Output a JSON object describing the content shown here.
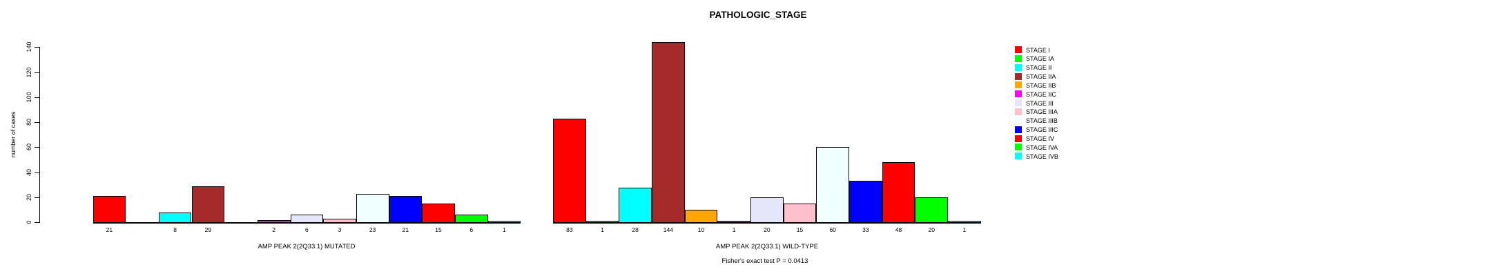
{
  "title": "PATHOLOGIC_STAGE",
  "chart_data": {
    "type": "bar",
    "title": "PATHOLOGIC_STAGE",
    "xlabel": "",
    "ylabel": "number of cases",
    "ylim": [
      0,
      140
    ],
    "yticks": [
      0,
      20,
      40,
      60,
      80,
      100,
      120,
      140
    ],
    "grid": false,
    "legend_position": "right",
    "categories": [
      "STAGE I",
      "STAGE IA",
      "STAGE II",
      "STAGE IIA",
      "STAGE IIB",
      "STAGE IIC",
      "STAGE III",
      "STAGE IIIA",
      "STAGE IIIB",
      "STAGE IIIC",
      "STAGE IV",
      "STAGE IVA",
      "STAGE IVB"
    ],
    "colors": [
      "#FF0000",
      "#00FF00",
      "#00FFFF",
      "#A52A2A",
      "#FFA500",
      "#FF00FF",
      "#E6E6FA",
      "#FFC0CB",
      "#F0FFFF",
      "#0000FF",
      "#FF0000",
      "#00FF00",
      "#00FFFF"
    ],
    "series": [
      {
        "name": "AMP PEAK 2(2Q33.1) MUTATED",
        "values": [
          21,
          0,
          8,
          29,
          0,
          2,
          6,
          3,
          23,
          21,
          15,
          6,
          1
        ]
      },
      {
        "name": "AMP PEAK 2(2Q33.1) WILD-TYPE",
        "values": [
          83,
          1,
          28,
          144,
          10,
          1,
          20,
          15,
          60,
          33,
          48,
          20,
          1
        ]
      }
    ],
    "groups": [
      {
        "label": "AMP PEAK 2(2Q33.1) MUTATED"
      },
      {
        "label": "AMP PEAK 2(2Q33.1) WILD-TYPE"
      }
    ],
    "annotation": "Fisher's exact test P = 0.0413",
    "bar_value_labels_shown_only_if_nonzero": true
  },
  "legend": {
    "entries": [
      {
        "label": "STAGE I",
        "color": "#FF0000"
      },
      {
        "label": "STAGE IA",
        "color": "#00FF00"
      },
      {
        "label": "STAGE II",
        "color": "#00FFFF"
      },
      {
        "label": "STAGE IIA",
        "color": "#A52A2A"
      },
      {
        "label": "STAGE IIB",
        "color": "#FFA500"
      },
      {
        "label": "STAGE IIC",
        "color": "#FF00FF"
      },
      {
        "label": "STAGE III",
        "color": "#E6E6FA"
      },
      {
        "label": "STAGE IIIA",
        "color": "#FFC0CB"
      },
      {
        "label": "STAGE IIIB",
        "color": "#F0FFFF"
      },
      {
        "label": "STAGE IIIC",
        "color": "#0000FF"
      },
      {
        "label": "STAGE IV",
        "color": "#FF0000"
      },
      {
        "label": "STAGE IVA",
        "color": "#00FF00"
      },
      {
        "label": "STAGE IVB",
        "color": "#00FFFF"
      }
    ]
  }
}
